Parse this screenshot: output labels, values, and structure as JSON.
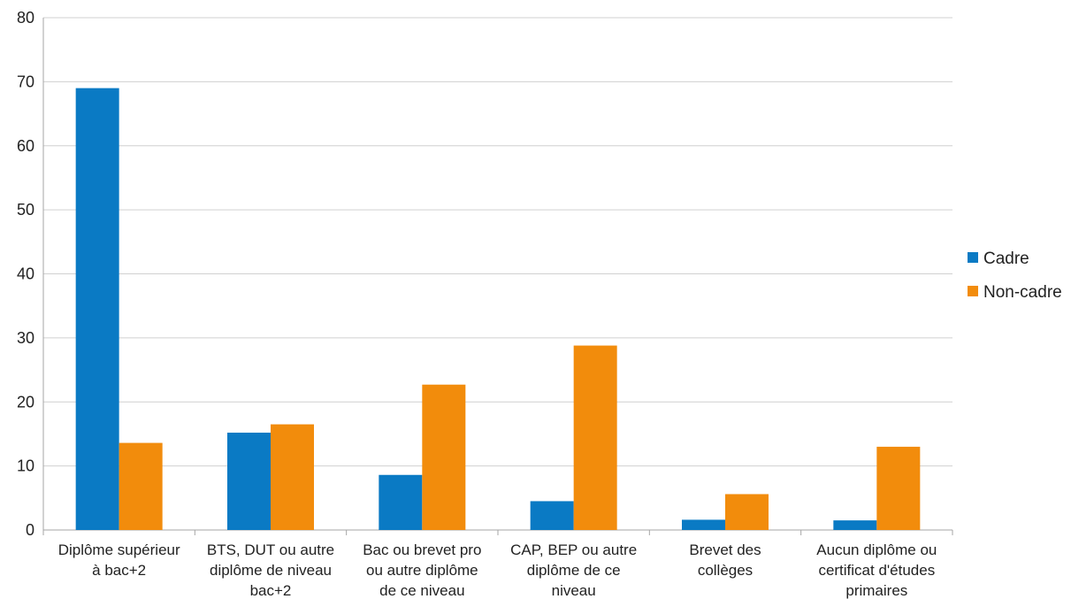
{
  "chart_data": {
    "type": "bar",
    "title": "",
    "xlabel": "",
    "ylabel": "",
    "ylim": [
      0,
      80
    ],
    "yticks": [
      0,
      10,
      20,
      30,
      40,
      50,
      60,
      70,
      80
    ],
    "grid": true,
    "legend_position": "right",
    "categories": [
      [
        "Diplôme supérieur",
        "à bac+2"
      ],
      [
        "BTS, DUT ou autre",
        "diplôme de niveau",
        "bac+2"
      ],
      [
        "Bac ou brevet pro",
        "ou autre diplôme",
        "de ce niveau"
      ],
      [
        "CAP, BEP ou autre",
        "diplôme de ce",
        "niveau"
      ],
      [
        "Brevet des",
        "collèges"
      ],
      [
        "Aucun diplôme ou",
        "certificat d'études",
        "primaires"
      ]
    ],
    "series": [
      {
        "name": "Cadre",
        "color": "#0a7ac4",
        "values": [
          69,
          15.2,
          8.6,
          4.5,
          1.6,
          1.5
        ]
      },
      {
        "name": "Non-cadre",
        "color": "#f28c0c",
        "values": [
          13.6,
          16.5,
          22.7,
          28.8,
          5.6,
          13
        ]
      }
    ]
  }
}
